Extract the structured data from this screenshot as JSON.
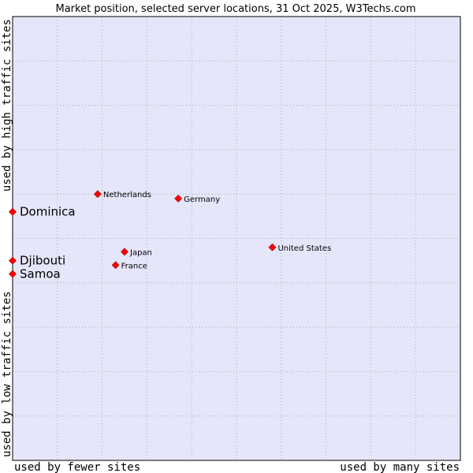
{
  "chart_data": {
    "type": "scatter",
    "title": "Market position, selected server locations, 31 Oct 2025, W3Techs.com",
    "xlabel_left": "used by fewer sites",
    "xlabel_right": "used by many sites",
    "ylabel_bottom": "used by low traffic sites",
    "ylabel_top": "used by high traffic sites",
    "xlim": [
      0,
      100
    ],
    "ylim": [
      0,
      100
    ],
    "grid": true,
    "colors": {
      "plot_background": "#e6e6fa",
      "grid": "#aaaaaa",
      "point": "#ff0000",
      "point_stroke": "#990000"
    },
    "points": [
      {
        "label": "Netherlands",
        "x": 19,
        "y": 60,
        "highlight": false
      },
      {
        "label": "Germany",
        "x": 37,
        "y": 59,
        "highlight": false
      },
      {
        "label": "Dominica",
        "x": 0,
        "y": 56,
        "highlight": true
      },
      {
        "label": "United States",
        "x": 58,
        "y": 48,
        "highlight": false
      },
      {
        "label": "Japan",
        "x": 25,
        "y": 47,
        "highlight": false
      },
      {
        "label": "Djibouti",
        "x": 0,
        "y": 45,
        "highlight": true
      },
      {
        "label": "France",
        "x": 23,
        "y": 44,
        "highlight": false
      },
      {
        "label": "Samoa",
        "x": 0,
        "y": 42,
        "highlight": true
      }
    ]
  }
}
